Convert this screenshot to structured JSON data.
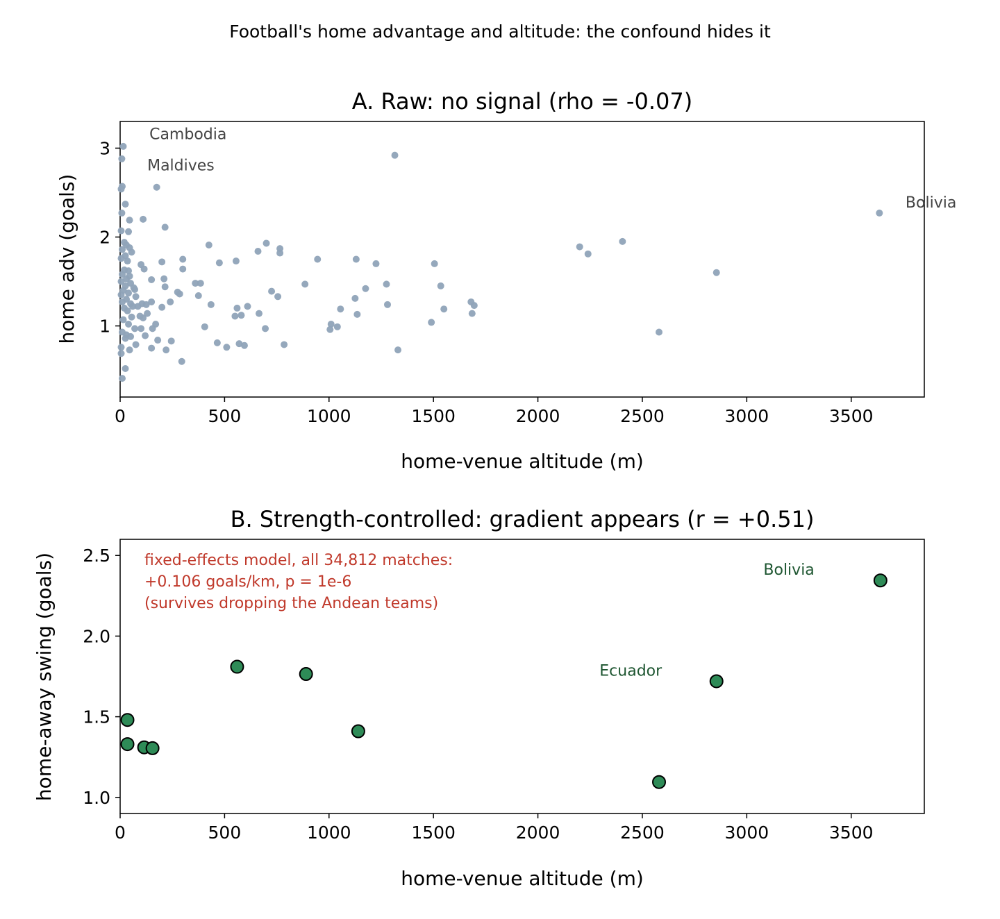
{
  "figure": {
    "suptitle": "Football's home advantage and altitude: the confound hides it"
  },
  "chart_data": [
    {
      "type": "scatter",
      "title": "A. Raw: no signal (rho = -0.07)",
      "xlabel": "home-venue altitude (m)",
      "ylabel": "home adv (goals)",
      "xlim": [
        0,
        3850
      ],
      "ylim": [
        0.2,
        3.3
      ],
      "xticks": [
        0,
        500,
        1000,
        1500,
        2000,
        2500,
        3000,
        3500
      ],
      "yticks": [
        1,
        2,
        3
      ],
      "point_color": "#8fa3b8",
      "annotation_color": "#444444",
      "annotations": [
        {
          "text": "Cambodia",
          "x": 140,
          "y": 3.1
        },
        {
          "text": "Maldives",
          "x": 130,
          "y": 2.75
        },
        {
          "text": "Bolivia",
          "x": 3760,
          "y": 2.33
        }
      ],
      "points": [
        [
          15,
          3.02
        ],
        [
          8,
          2.88
        ],
        [
          10,
          2.57
        ],
        [
          5,
          2.54
        ],
        [
          25,
          2.37
        ],
        [
          8,
          2.27
        ],
        [
          45,
          2.19
        ],
        [
          110,
          2.2
        ],
        [
          175,
          2.56
        ],
        [
          215,
          2.11
        ],
        [
          5,
          2.07
        ],
        [
          40,
          2.06
        ],
        [
          20,
          1.94
        ],
        [
          30,
          1.91
        ],
        [
          45,
          1.88
        ],
        [
          10,
          1.86
        ],
        [
          55,
          1.83
        ],
        [
          25,
          1.79
        ],
        [
          5,
          1.76
        ],
        [
          35,
          1.73
        ],
        [
          100,
          1.69
        ],
        [
          115,
          1.64
        ],
        [
          20,
          1.63
        ],
        [
          40,
          1.62
        ],
        [
          10,
          1.58
        ],
        [
          45,
          1.56
        ],
        [
          30,
          1.53
        ],
        [
          5,
          1.5
        ],
        [
          50,
          1.48
        ],
        [
          25,
          1.45
        ],
        [
          65,
          1.43
        ],
        [
          70,
          1.41
        ],
        [
          15,
          1.4
        ],
        [
          40,
          1.37
        ],
        [
          5,
          1.35
        ],
        [
          75,
          1.33
        ],
        [
          30,
          1.3
        ],
        [
          10,
          1.27
        ],
        [
          50,
          1.25
        ],
        [
          60,
          1.22
        ],
        [
          85,
          1.22
        ],
        [
          105,
          1.25
        ],
        [
          125,
          1.24
        ],
        [
          150,
          1.27
        ],
        [
          20,
          1.2
        ],
        [
          35,
          1.17
        ],
        [
          130,
          1.14
        ],
        [
          95,
          1.11
        ],
        [
          110,
          1.09
        ],
        [
          55,
          1.1
        ],
        [
          15,
          1.07
        ],
        [
          40,
          1.02
        ],
        [
          170,
          1.02
        ],
        [
          155,
          0.97
        ],
        [
          70,
          0.97
        ],
        [
          100,
          0.97
        ],
        [
          10,
          0.93
        ],
        [
          30,
          0.9
        ],
        [
          50,
          0.88
        ],
        [
          120,
          0.89
        ],
        [
          25,
          0.86
        ],
        [
          180,
          0.84
        ],
        [
          245,
          0.83
        ],
        [
          75,
          0.79
        ],
        [
          5,
          0.76
        ],
        [
          150,
          0.75
        ],
        [
          220,
          0.73
        ],
        [
          45,
          0.73
        ],
        [
          5,
          0.69
        ],
        [
          295,
          0.6
        ],
        [
          25,
          0.52
        ],
        [
          10,
          0.41
        ],
        [
          150,
          1.52
        ],
        [
          210,
          1.53
        ],
        [
          200,
          1.72
        ],
        [
          215,
          1.44
        ],
        [
          200,
          1.21
        ],
        [
          240,
          1.27
        ],
        [
          275,
          1.38
        ],
        [
          285,
          1.36
        ],
        [
          300,
          1.64
        ],
        [
          300,
          1.75
        ],
        [
          360,
          1.48
        ],
        [
          385,
          1.48
        ],
        [
          375,
          1.34
        ],
        [
          405,
          0.99
        ],
        [
          425,
          1.91
        ],
        [
          435,
          1.24
        ],
        [
          475,
          1.71
        ],
        [
          465,
          0.81
        ],
        [
          510,
          0.76
        ],
        [
          550,
          1.11
        ],
        [
          555,
          1.73
        ],
        [
          560,
          1.2
        ],
        [
          580,
          1.12
        ],
        [
          570,
          0.8
        ],
        [
          595,
          0.78
        ],
        [
          610,
          1.22
        ],
        [
          660,
          1.84
        ],
        [
          665,
          1.14
        ],
        [
          695,
          0.97
        ],
        [
          700,
          1.93
        ],
        [
          725,
          1.39
        ],
        [
          755,
          1.33
        ],
        [
          765,
          1.87
        ],
        [
          765,
          1.82
        ],
        [
          785,
          0.79
        ],
        [
          885,
          1.47
        ],
        [
          945,
          1.75
        ],
        [
          1005,
          0.96
        ],
        [
          1010,
          1.02
        ],
        [
          1040,
          0.99
        ],
        [
          1055,
          1.19
        ],
        [
          1125,
          1.31
        ],
        [
          1130,
          1.75
        ],
        [
          1135,
          1.13
        ],
        [
          1175,
          1.42
        ],
        [
          1225,
          1.7
        ],
        [
          1275,
          1.47
        ],
        [
          1280,
          1.24
        ],
        [
          1315,
          2.92
        ],
        [
          1330,
          0.73
        ],
        [
          1490,
          1.04
        ],
        [
          1505,
          1.7
        ],
        [
          1535,
          1.45
        ],
        [
          1550,
          1.19
        ],
        [
          1680,
          1.27
        ],
        [
          1685,
          1.14
        ],
        [
          1695,
          1.23
        ],
        [
          2200,
          1.89
        ],
        [
          2240,
          1.81
        ],
        [
          2405,
          1.95
        ],
        [
          2580,
          0.93
        ],
        [
          2855,
          1.6
        ],
        [
          3635,
          2.27
        ]
      ]
    },
    {
      "type": "scatter",
      "title": "B. Strength-controlled: gradient appears (r = +0.51)",
      "xlabel": "home-venue altitude (m)",
      "ylabel": "home-away swing (goals)",
      "xlim": [
        0,
        3850
      ],
      "ylim": [
        0.9,
        2.6
      ],
      "xticks": [
        0,
        500,
        1000,
        1500,
        2000,
        2500,
        3000,
        3500
      ],
      "yticks": [
        "1.0",
        "1.5",
        "2.0",
        "2.5"
      ],
      "point_color": "#2e8b57",
      "annotation_color": "#1e5631",
      "annotations": [
        {
          "text": "Bolivia",
          "x": 3080,
          "y": 2.38
        },
        {
          "text": "Ecuador",
          "x": 2295,
          "y": 1.755
        }
      ],
      "note": {
        "color": "#c0392b",
        "lines": [
          "fixed-effects model, all 34,812 matches:",
          "+0.106 goals/km, p = 1e-6",
          "(survives dropping the Andean teams)"
        ]
      },
      "points": [
        [
          35,
          1.48
        ],
        [
          35,
          1.33
        ],
        [
          115,
          1.31
        ],
        [
          155,
          1.305
        ],
        [
          560,
          1.81
        ],
        [
          890,
          1.765
        ],
        [
          1140,
          1.41
        ],
        [
          2580,
          1.095
        ],
        [
          2855,
          1.72
        ],
        [
          3640,
          2.345
        ]
      ]
    }
  ]
}
